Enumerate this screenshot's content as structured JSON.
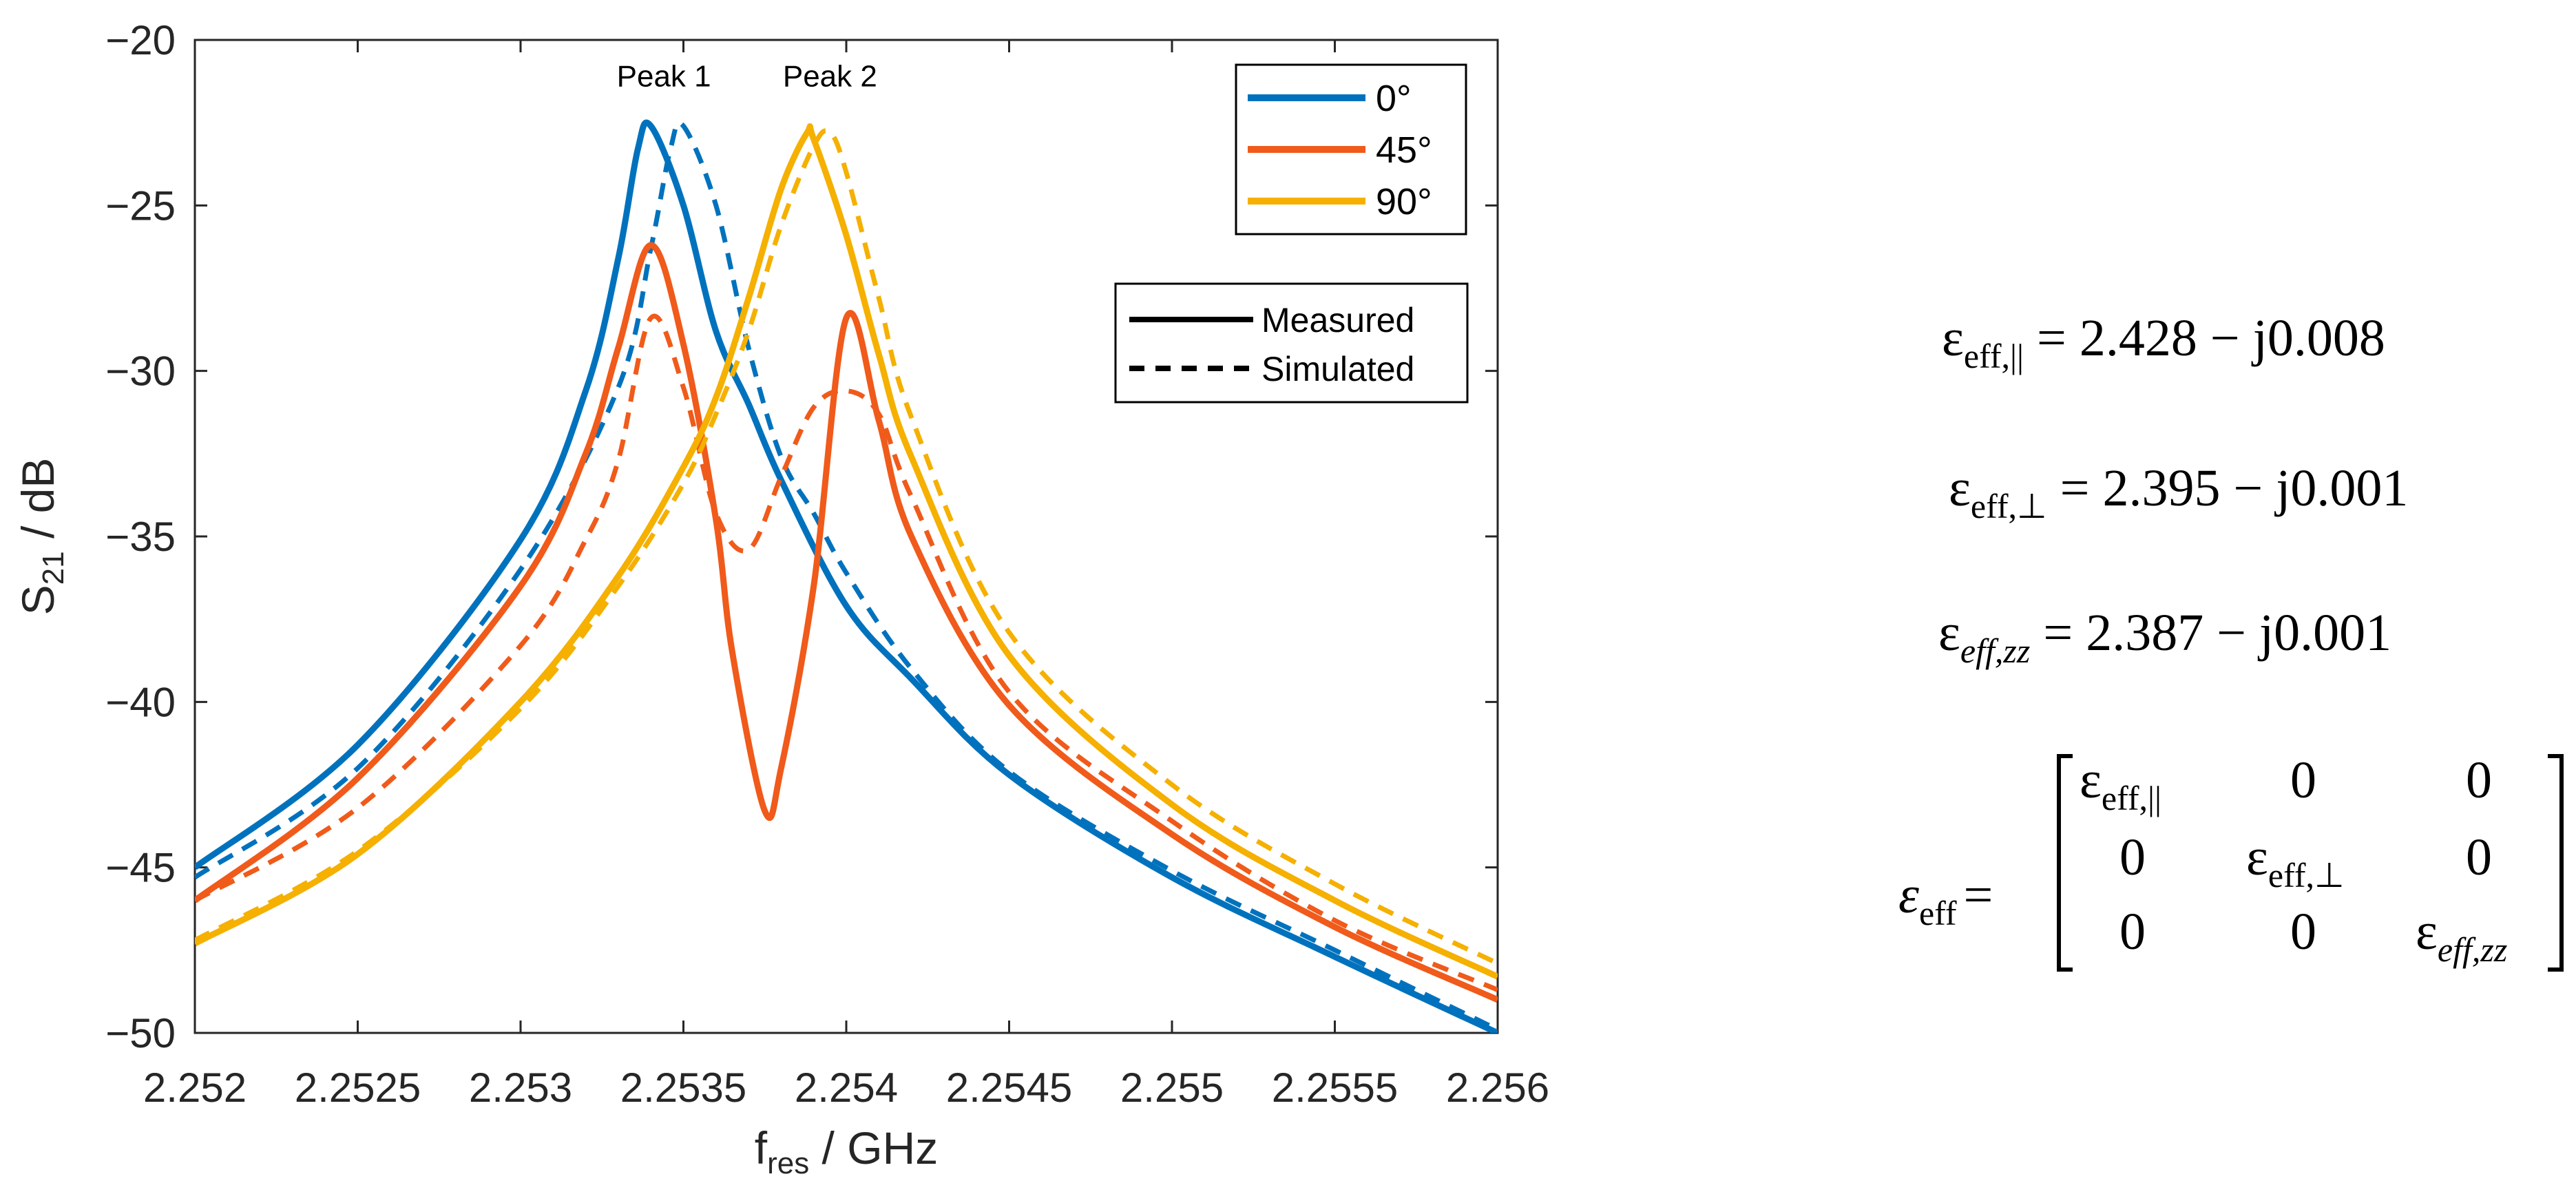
{
  "chart_data": {
    "type": "line",
    "xlabel": {
      "main": "f",
      "sub": "res",
      "unit": " / GHz"
    },
    "ylabel": {
      "main": "S",
      "sub": "21",
      "unit": " / dB"
    },
    "xlim": [
      2.252,
      2.256
    ],
    "ylim": [
      -50,
      -20
    ],
    "xticks": [
      2.252,
      2.2525,
      2.253,
      2.2535,
      2.254,
      2.2545,
      2.255,
      2.2555,
      2.256
    ],
    "xtick_labels": [
      "2.252",
      "2.2525",
      "2.253",
      "2.2535",
      "2.254",
      "2.2545",
      "2.255",
      "2.2555",
      "2.256"
    ],
    "yticks": [
      -20,
      -25,
      -30,
      -35,
      -40,
      -45,
      -50
    ],
    "ytick_labels": [
      "−20",
      "−25",
      "−30",
      "−35",
      "−40",
      "−45",
      "−50"
    ],
    "annotations": [
      {
        "text": "Peak 1",
        "x": 2.25344,
        "y": -21.4
      },
      {
        "text": "Peak 2",
        "x": 2.25395,
        "y": -21.4
      }
    ],
    "legend_angles": {
      "placement": "top-right",
      "entries": [
        {
          "label": "0°",
          "color": "#0072BD"
        },
        {
          "label": "45°",
          "color": "#F05A1A"
        },
        {
          "label": "90°",
          "color": "#F5B000"
        }
      ]
    },
    "legend_style": {
      "placement": "right",
      "entries": [
        {
          "label": "Measured",
          "style": "solid"
        },
        {
          "label": "Simulated",
          "style": "dashed"
        }
      ]
    },
    "series": [
      {
        "name": "0° Measured",
        "color": "#0072BD",
        "style": "solid",
        "x": [
          2.252,
          2.2525,
          2.253,
          2.2532,
          2.2533,
          2.25336,
          2.2534,
          2.2535,
          2.2536,
          2.2537,
          2.2538,
          2.254,
          2.2542,
          2.2545,
          2.255,
          2.2555,
          2.256
        ],
        "y": [
          -45.0,
          -41.3,
          -35.1,
          -30.6,
          -26.6,
          -23.3,
          -22.6,
          -25.0,
          -28.8,
          -31.0,
          -33.3,
          -37.1,
          -39.3,
          -42.2,
          -45.3,
          -47.7,
          -50.0
        ]
      },
      {
        "name": "0° Simulated",
        "color": "#0072BD",
        "style": "dashed",
        "x": [
          2.252,
          2.2525,
          2.253,
          2.2533,
          2.2534,
          2.25346,
          2.2535,
          2.2536,
          2.2537,
          2.2538,
          2.2539,
          2.254,
          2.2542,
          2.2545,
          2.255,
          2.2555,
          2.256
        ],
        "y": [
          -45.3,
          -42.0,
          -36.0,
          -30.5,
          -26.3,
          -23.3,
          -22.6,
          -25.0,
          -29.3,
          -32.6,
          -34.3,
          -36.1,
          -39.0,
          -42.1,
          -45.1,
          -47.5,
          -49.9
        ]
      },
      {
        "name": "45° Measured",
        "color": "#F05A1A",
        "style": "solid",
        "x": [
          2.252,
          2.2525,
          2.253,
          2.2532,
          2.2533,
          2.2534,
          2.2535,
          2.2536,
          2.25365,
          2.25375,
          2.2538,
          2.2539,
          2.254,
          2.2541,
          2.2542,
          2.2545,
          2.255,
          2.2555,
          2.256
        ],
        "y": [
          -46.0,
          -42.3,
          -36.5,
          -32.5,
          -29.3,
          -26.2,
          -29.2,
          -34.5,
          -38.5,
          -43.3,
          -42.0,
          -36.5,
          -28.4,
          -31.5,
          -35.0,
          -40.1,
          -44.0,
          -46.8,
          -49.0
        ]
      },
      {
        "name": "45° Simulated",
        "color": "#F05A1A",
        "style": "dashed",
        "x": [
          2.252,
          2.2525,
          2.253,
          2.2532,
          2.2533,
          2.2534,
          2.2535,
          2.2536,
          2.2537,
          2.2538,
          2.2539,
          2.254,
          2.2541,
          2.2542,
          2.2545,
          2.255,
          2.2555,
          2.256
        ],
        "y": [
          -46.0,
          -43.2,
          -38.3,
          -35.1,
          -32.7,
          -28.4,
          -30.5,
          -34.3,
          -35.4,
          -33.2,
          -31.1,
          -30.6,
          -31.3,
          -33.8,
          -39.7,
          -43.6,
          -46.6,
          -48.7
        ]
      },
      {
        "name": "90° Measured",
        "color": "#F5B000",
        "style": "solid",
        "x": [
          2.252,
          2.2525,
          2.253,
          2.2533,
          2.2535,
          2.2536,
          2.2537,
          2.2538,
          2.25388,
          2.2539,
          2.254,
          2.2541,
          2.2542,
          2.2545,
          2.255,
          2.2555,
          2.256
        ],
        "y": [
          -47.3,
          -44.6,
          -40.0,
          -36.2,
          -32.9,
          -30.8,
          -27.8,
          -24.5,
          -22.8,
          -23.0,
          -25.9,
          -29.5,
          -32.6,
          -38.6,
          -43.1,
          -46.0,
          -48.3
        ]
      },
      {
        "name": "90° Simulated",
        "color": "#F5B000",
        "style": "dashed",
        "x": [
          2.252,
          2.2525,
          2.253,
          2.2533,
          2.2535,
          2.2536,
          2.2537,
          2.2538,
          2.2539,
          2.25395,
          2.254,
          2.2541,
          2.2542,
          2.2545,
          2.255,
          2.2555,
          2.256
        ],
        "y": [
          -47.2,
          -44.5,
          -40.2,
          -36.5,
          -33.4,
          -31.3,
          -28.8,
          -25.6,
          -23.2,
          -22.8,
          -24.0,
          -27.8,
          -31.4,
          -37.9,
          -42.5,
          -45.5,
          -47.9
        ]
      }
    ]
  },
  "equations": {
    "eps_par": {
      "symbol": "ε",
      "sub": "eff,||",
      "value": " = 2.428 − j0.008"
    },
    "eps_perp": {
      "symbol": "ε",
      "sub": "eff,⊥",
      "value": " = 2.395 − j0.001"
    },
    "eps_zz": {
      "symbol": "ε",
      "sub": "eff,zz",
      "value": " = 2.387 − j0.001"
    },
    "tensor": {
      "lhs_symbol": "ε",
      "lhs_sub": "eff",
      "equals": "=",
      "zero": "0",
      "diag_symbol": "ε",
      "diag_subs": [
        "eff,||",
        "eff,⊥",
        "eff,zz"
      ]
    }
  }
}
